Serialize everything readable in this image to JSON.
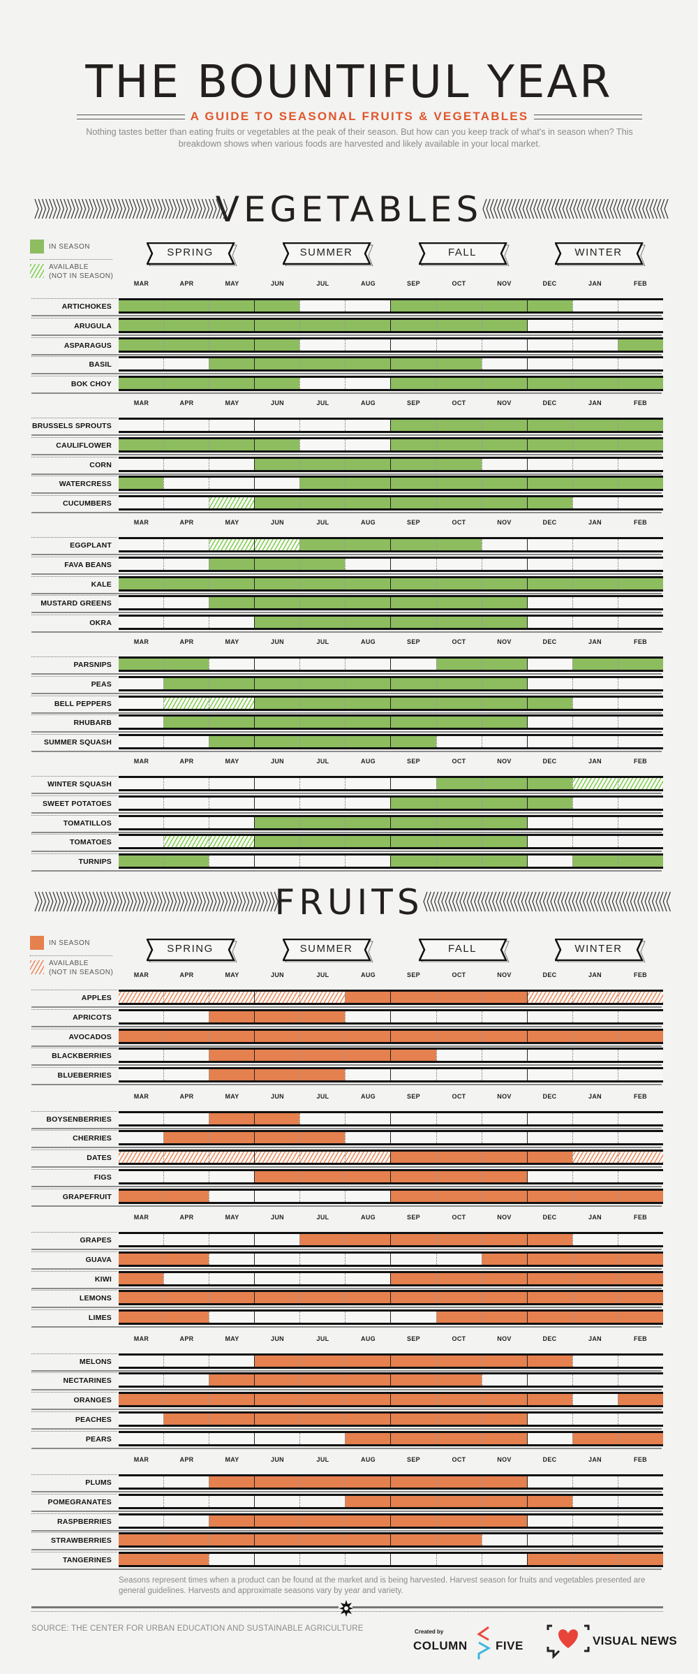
{
  "header": {
    "title": "THE BOUNTIFUL YEAR",
    "subtitle": "A GUIDE TO SEASONAL FRUITS & VEGETABLES",
    "intro": "Nothing tastes better than eating fruits or vegetables at the peak of their season. But how can you keep track of what's in season when? This breakdown shows when various foods are harvested and likely available in your local market."
  },
  "seasons": [
    "SPRING",
    "SUMMER",
    "FALL",
    "WINTER"
  ],
  "legend": {
    "in_season": "IN SEASON",
    "available_line1": "AVAILABLE",
    "available_line2": "(NOT IN SEASON)"
  },
  "colors": {
    "vegetable": "#8dbd5f",
    "vegetable_hatch": "#7fd04a",
    "fruit": "#e5804f",
    "fruit_hatch": "#ef8a5a"
  },
  "chart_data": {
    "type": "heatmap",
    "title": "THE BOUNTIFUL YEAR",
    "months": [
      "MAR",
      "APR",
      "MAY",
      "JUN",
      "JUL",
      "AUG",
      "SEP",
      "OCT",
      "NOV",
      "DEC",
      "JAN",
      "FEB"
    ],
    "status_key": {
      "S": "in season",
      "A": "available (not in season)",
      "-": "not available"
    },
    "sections": [
      {
        "heading": "VEGETABLES",
        "key": "vegetable",
        "groups": [
          [
            {
              "name": "ARTICHOKES",
              "status": "SSSS--SSSS--"
            },
            {
              "name": "ARUGULA",
              "status": "SSSSSSSSS---"
            },
            {
              "name": "ASPARAGUS",
              "status": "SSSS-------S"
            },
            {
              "name": "BASIL",
              "status": "--SSSSSS----"
            },
            {
              "name": "BOK CHOY",
              "status": "SSSS--SSSSSS"
            }
          ],
          [
            {
              "name": "BRUSSELS SPROUTS",
              "status": "------SSSSSS"
            },
            {
              "name": "CAULIFLOWER",
              "status": "SSSS--SSSSSS"
            },
            {
              "name": "CORN",
              "status": "---SSSSS----"
            },
            {
              "name": "WATERCRESS",
              "status": "S---SSSSSSSS"
            },
            {
              "name": "CUCUMBERS",
              "status": "--ASSSSSSS--"
            }
          ],
          [
            {
              "name": "EGGPLANT",
              "status": "--AASSSS----"
            },
            {
              "name": "FAVA BEANS",
              "status": "--SSS-------"
            },
            {
              "name": "KALE",
              "status": "SSSSSSSSSSSS"
            },
            {
              "name": "MUSTARD GREENS",
              "status": "--SSSSSSS---"
            },
            {
              "name": "OKRA",
              "status": "---SSSSSS---"
            }
          ],
          [
            {
              "name": "PARSNIPS",
              "status": "SS-----SS-SS"
            },
            {
              "name": "PEAS",
              "status": "-SSSSSSSS---"
            },
            {
              "name": "BELL PEPPERS",
              "status": "-AASSSSSSS--"
            },
            {
              "name": "RHUBARB",
              "status": "-SSSSSSSS---"
            },
            {
              "name": "SUMMER SQUASH",
              "status": "--SSSSS-----"
            }
          ],
          [
            {
              "name": "WINTER SQUASH",
              "status": "-------SSSAA"
            },
            {
              "name": "SWEET POTATOES",
              "status": "------SSSS--"
            },
            {
              "name": "TOMATILLOS",
              "status": "---SSSSSS---"
            },
            {
              "name": "TOMATOES",
              "status": "-AASSSSSS---"
            },
            {
              "name": "TURNIPS",
              "status": "SS----SSS-SS"
            }
          ]
        ]
      },
      {
        "heading": "FRUITS",
        "key": "fruit",
        "groups": [
          [
            {
              "name": "APPLES",
              "status": "AAAAASSSSAAA"
            },
            {
              "name": "APRICOTS",
              "status": "--SSS-------"
            },
            {
              "name": "AVOCADOS",
              "status": "SSSSSSSSSSSS"
            },
            {
              "name": "BLACKBERRIES",
              "status": "--SSSSS-----"
            },
            {
              "name": "BLUEBERRIES",
              "status": "--SSS-------"
            }
          ],
          [
            {
              "name": "BOYSENBERRIES",
              "status": "--SS--------"
            },
            {
              "name": "CHERRIES",
              "status": "-SSSS-------"
            },
            {
              "name": "DATES",
              "status": "AAAAAASSSSAA"
            },
            {
              "name": "FIGS",
              "status": "---SSSSSS---"
            },
            {
              "name": "GRAPEFRUIT",
              "status": "SS----SSSSSS"
            }
          ],
          [
            {
              "name": "GRAPES",
              "status": "----SSSSSS--"
            },
            {
              "name": "GUAVA",
              "status": "SS------SSSS"
            },
            {
              "name": "KIWI",
              "status": "S-----SSSSSS"
            },
            {
              "name": "LEMONS",
              "status": "SSSSSSSSSSSS"
            },
            {
              "name": "LIMES",
              "status": "SS-----SSSSS"
            }
          ],
          [
            {
              "name": "MELONS",
              "status": "---SSSSSSS--"
            },
            {
              "name": "NECTARINES",
              "status": "--SSSSSS----"
            },
            {
              "name": "ORANGES",
              "status": "SSSSSSSSSS-S"
            },
            {
              "name": "PEACHES",
              "status": "-SSSSSSSS---"
            },
            {
              "name": "PEARS",
              "status": "-----SSSS-SS"
            }
          ],
          [
            {
              "name": "PLUMS",
              "status": "--SSSSSSS---"
            },
            {
              "name": "POMEGRANATES",
              "status": "-----SSSSS--"
            },
            {
              "name": "RASPBERRIES",
              "status": "--SSSSSSS---"
            },
            {
              "name": "STRAWBERRIES",
              "status": "SSSSSSSS----"
            },
            {
              "name": "TANGERINES",
              "status": "SS-------SSS"
            }
          ]
        ]
      }
    ]
  },
  "footer": {
    "note": "Seasons represent times when a product can be found at the market and is being harvested. Harvest season for fruits and vegetables presented are general guidelines. Harvests and approximate seasons vary by year and variety.",
    "source": "SOURCE: THE CENTER FOR URBAN EDUCATION AND SUSTAINABLE AGRICULTURE",
    "created_by": "Created by",
    "column": "COLUMN",
    "five": "FIVE",
    "visual_news": "VISUAL NEWS"
  }
}
